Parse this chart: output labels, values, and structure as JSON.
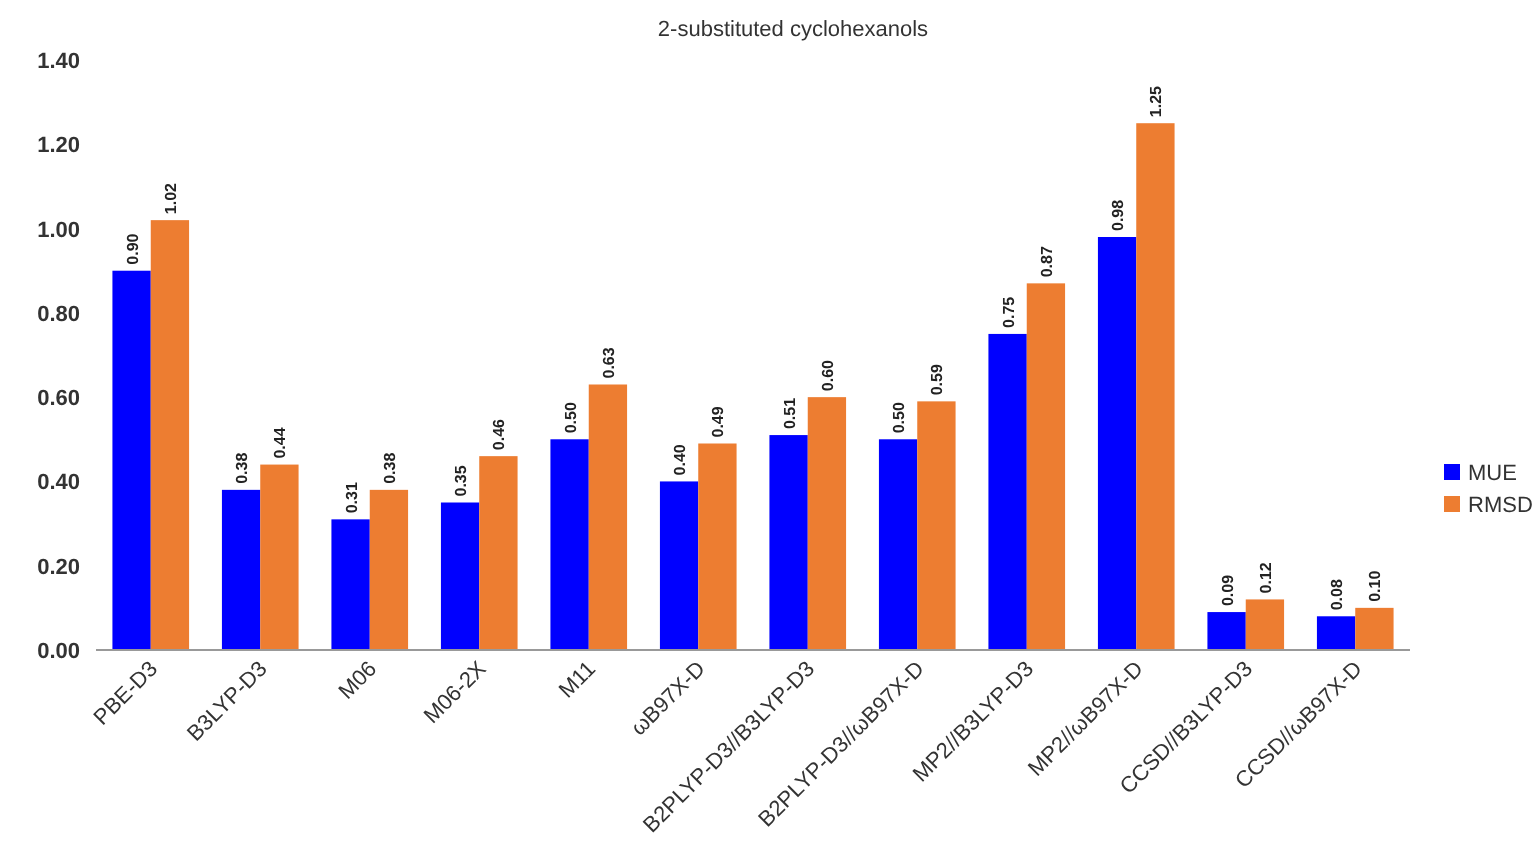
{
  "chart_data": {
    "type": "bar",
    "title": "2-substituted cyclohexanols",
    "categories": [
      "PBE-D3",
      "B3LYP-D3",
      "M06",
      "M06-2X",
      "M11",
      "ωB97X-D",
      "B2PLYP-D3//B3LYP-D3",
      "B2PLYP-D3//ωB97X-D",
      "MP2//B3LYP-D3",
      "MP2//ωB97X-D",
      "CCSD//B3LYP-D3",
      "CCSD//ωB97X-D"
    ],
    "series": [
      {
        "name": "MUE",
        "color": "#0000ff",
        "values": [
          0.9,
          0.38,
          0.31,
          0.35,
          0.5,
          0.4,
          0.51,
          0.5,
          0.75,
          0.98,
          0.09,
          0.08
        ],
        "value_labels": [
          "0.90",
          "0.38",
          "0.31",
          "0.35",
          "0.50",
          "0.40",
          "0.51",
          "0.50",
          "0.75",
          "0.98",
          "0.09",
          "0.08"
        ]
      },
      {
        "name": "RMSD",
        "color": "#ed7d31",
        "values": [
          1.02,
          0.44,
          0.38,
          0.46,
          0.63,
          0.49,
          0.6,
          0.59,
          0.87,
          1.25,
          0.12,
          0.1
        ],
        "value_labels": [
          "1.02",
          "0.44",
          "0.38",
          "0.46",
          "0.63",
          "0.49",
          "0.60",
          "0.59",
          "0.87",
          "1.25",
          "0.12",
          "0.10"
        ]
      }
    ],
    "ylim": [
      0,
      1.4
    ],
    "yticks": [
      {
        "value": 0,
        "label": "0.00"
      },
      {
        "value": 0.2,
        "label": "0.20"
      },
      {
        "value": 0.4,
        "label": "0.40"
      },
      {
        "value": 0.6,
        "label": "0.60"
      },
      {
        "value": 0.8,
        "label": "0.80"
      },
      {
        "value": 1.0,
        "label": "1.00"
      },
      {
        "value": 1.2,
        "label": "1.20"
      },
      {
        "value": 1.4,
        "label": "1.40"
      }
    ],
    "grid": false,
    "legend": "right"
  }
}
